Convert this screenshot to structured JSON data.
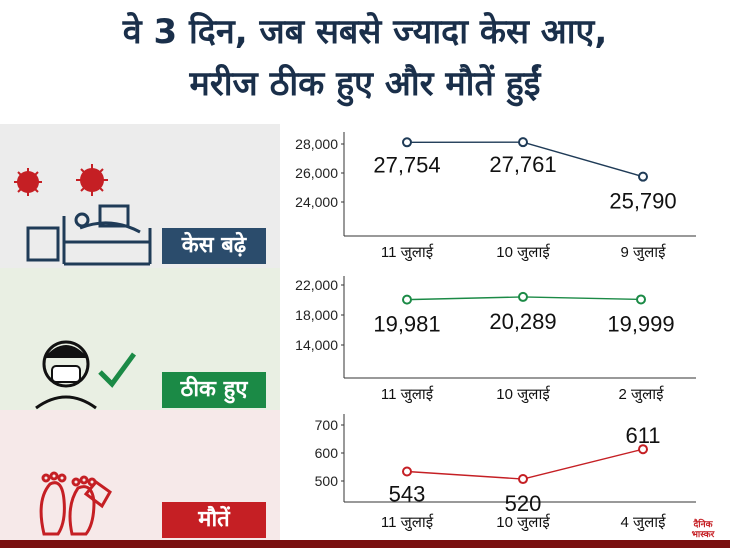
{
  "header": {
    "title_line1": "वे 3 दिन, जब सबसे ज्यादा केस आए,",
    "title_line2": "मरीज ठीक हुए और मौतें हुईं"
  },
  "logo": "दैनिक भास्कर",
  "chart_data": [
    {
      "type": "line",
      "label": "केस बढ़े",
      "color": "#1f3b57",
      "categories": [
        "11 जुलाई",
        "10 जुलाई",
        "9 जुलाई"
      ],
      "values": [
        27754,
        27761,
        25790
      ],
      "value_labels": [
        "27,754",
        "27,761",
        "25,790"
      ],
      "yticks": [
        "28,000",
        "26,000",
        "24,000"
      ],
      "ylim": [
        22400,
        28000
      ]
    },
    {
      "type": "line",
      "label": "ठीक हुए",
      "color": "#1b8a46",
      "categories": [
        "11 जुलाई",
        "10 जुलाई",
        "2 जुलाई"
      ],
      "values": [
        19981,
        20289,
        19999
      ],
      "value_labels": [
        "19,981",
        "20,289",
        "19,999"
      ],
      "yticks": [
        "22,000",
        "18,000",
        "14,000"
      ],
      "ylim": [
        11000,
        22000
      ]
    },
    {
      "type": "line",
      "label": "मौतें",
      "color": "#c51f24",
      "categories": [
        "11 जुलाई",
        "10 जुलाई",
        "4 जुलाई"
      ],
      "values": [
        543,
        520,
        611
      ],
      "value_labels": [
        "543",
        "520",
        "611"
      ],
      "yticks": [
        "700",
        "600",
        "500"
      ],
      "ylim": [
        450,
        700
      ]
    }
  ]
}
